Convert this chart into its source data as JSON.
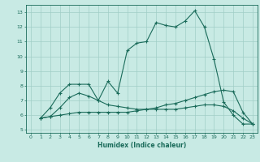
{
  "title": "",
  "xlabel": "Humidex (Indice chaleur)",
  "ylabel": "",
  "xlim": [
    -0.5,
    23.5
  ],
  "ylim": [
    4.8,
    13.5
  ],
  "yticks": [
    5,
    6,
    7,
    8,
    9,
    10,
    11,
    12,
    13
  ],
  "xticks": [
    0,
    1,
    2,
    3,
    4,
    5,
    6,
    7,
    8,
    9,
    10,
    11,
    12,
    13,
    14,
    15,
    16,
    17,
    18,
    19,
    20,
    21,
    22,
    23
  ],
  "background_color": "#c8eae4",
  "grid_color": "#a0cec6",
  "line_color": "#1a6b5a",
  "lines": [
    {
      "x": [
        1,
        2,
        3,
        4,
        5,
        6,
        7,
        8,
        9,
        10,
        11,
        12,
        13,
        14,
        15,
        16,
        17,
        18,
        19,
        20,
        21,
        22,
        23
      ],
      "y": [
        5.8,
        6.5,
        7.5,
        8.1,
        8.1,
        8.1,
        7.0,
        8.3,
        7.5,
        10.4,
        10.9,
        11.0,
        12.3,
        12.1,
        12.0,
        12.4,
        13.1,
        12.0,
        9.8,
        6.9,
        6.0,
        5.4,
        5.4
      ]
    },
    {
      "x": [
        1,
        2,
        3,
        4,
        5,
        6,
        7,
        8,
        9,
        10,
        11,
        12,
        13,
        14,
        15,
        16,
        17,
        18,
        19,
        20,
        21,
        22,
        23
      ],
      "y": [
        5.8,
        5.9,
        6.5,
        7.2,
        7.5,
        7.3,
        7.0,
        6.7,
        6.6,
        6.5,
        6.4,
        6.4,
        6.4,
        6.4,
        6.4,
        6.5,
        6.6,
        6.7,
        6.7,
        6.6,
        6.3,
        5.8,
        5.4
      ]
    },
    {
      "x": [
        1,
        2,
        3,
        4,
        5,
        6,
        7,
        8,
        9,
        10,
        11,
        12,
        13,
        14,
        15,
        16,
        17,
        18,
        19,
        20,
        21,
        22,
        23
      ],
      "y": [
        5.8,
        5.9,
        6.0,
        6.1,
        6.2,
        6.2,
        6.2,
        6.2,
        6.2,
        6.2,
        6.3,
        6.4,
        6.5,
        6.7,
        6.8,
        7.0,
        7.2,
        7.4,
        7.6,
        7.7,
        7.6,
        6.2,
        5.4
      ]
    }
  ]
}
